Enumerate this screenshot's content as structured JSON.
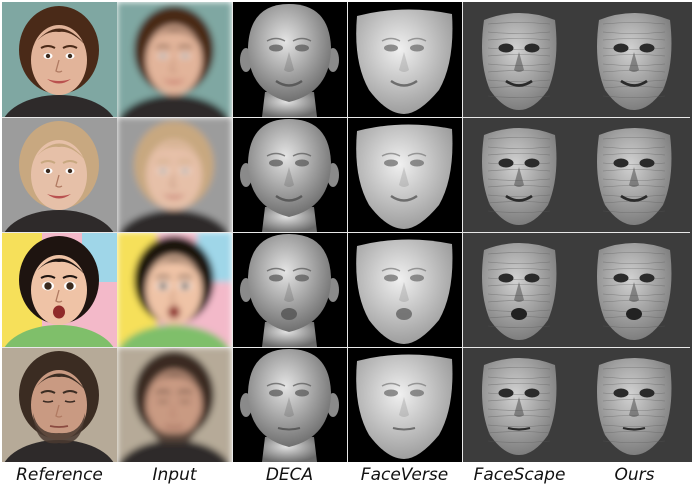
{
  "figure": {
    "columns": [
      {
        "key": "reference",
        "label": "Reference",
        "kind": "photo",
        "bg": "#7e6a5e"
      },
      {
        "key": "input",
        "label": "Input",
        "kind": "blurred-photo",
        "bg": "#8b7b70"
      },
      {
        "key": "deca",
        "label": "DECA",
        "kind": "mesh-head",
        "bg": "#000000"
      },
      {
        "key": "faceverse",
        "label": "FaceVerse",
        "kind": "mesh-mask",
        "bg": "#000000"
      },
      {
        "key": "facescape",
        "label": "FaceScape",
        "kind": "mesh-textured",
        "bg": "#3c3c3c"
      },
      {
        "key": "ours",
        "label": "Ours",
        "kind": "mesh-textured",
        "bg": "#3c3c3c"
      }
    ],
    "rows": [
      {
        "subject": "woman-brown-curly-hair",
        "skin": "#e2b49a",
        "hair": "#4a2a18",
        "bg": "#7fa7a2",
        "expression": "smile"
      },
      {
        "subject": "blonde-woman",
        "skin": "#e6c0a8",
        "hair": "#c8a880",
        "bg": "#9c9c9c",
        "expression": "smile"
      },
      {
        "subject": "toddler-open-mouth",
        "skin": "#efc3a6",
        "hair": "#1e1410",
        "bg": "#f3b9c9",
        "expression": "surprise"
      },
      {
        "subject": "bearded-man-eyes-closed",
        "skin": "#c99a82",
        "hair": "#3b2c22",
        "bg": "#b6aa98",
        "expression": "neutral"
      }
    ]
  }
}
